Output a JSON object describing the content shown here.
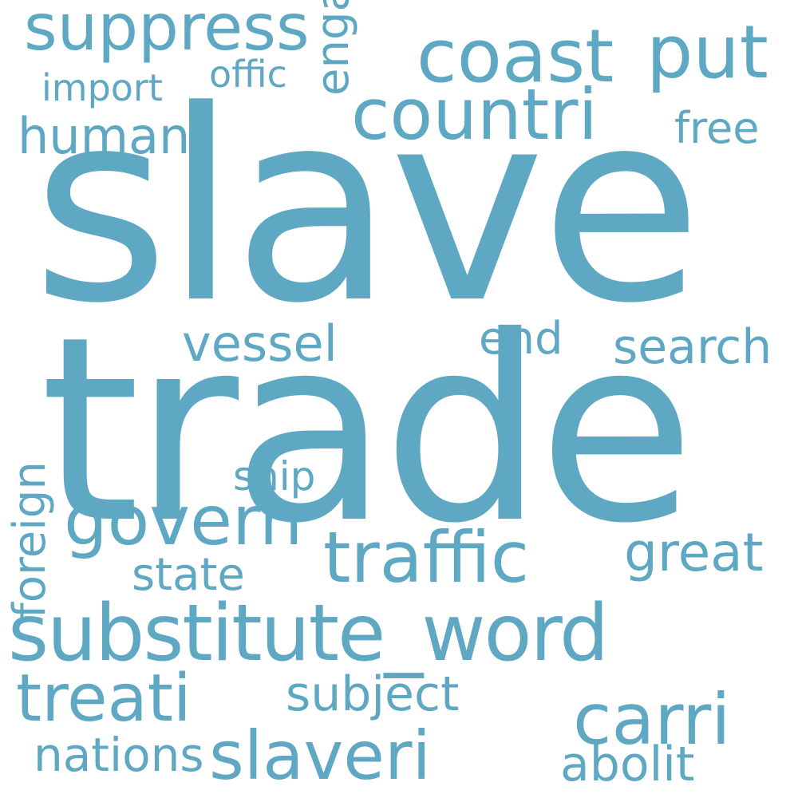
{
  "wordcloud": {
    "color": "#5fa8c4",
    "words": {
      "slave": "slave",
      "trade": "trade",
      "substitute_word": "substitute_word",
      "suppress": "suppress",
      "coast": "coast",
      "put": "put",
      "countri": "countri",
      "offic": "offic",
      "import": "import",
      "human": "human",
      "free": "free",
      "engag": "engag",
      "end": "end",
      "vessel": "vessel",
      "search": "search",
      "foreign": "foreign",
      "ship": "ship",
      "govern": "govern",
      "traffic": "traffic",
      "great": "great",
      "state": "state",
      "treati": "treati",
      "subject": "subject",
      "carri": "carri",
      "slaveri": "slaveri",
      "nations": "nations",
      "abolit": "abolit"
    }
  }
}
